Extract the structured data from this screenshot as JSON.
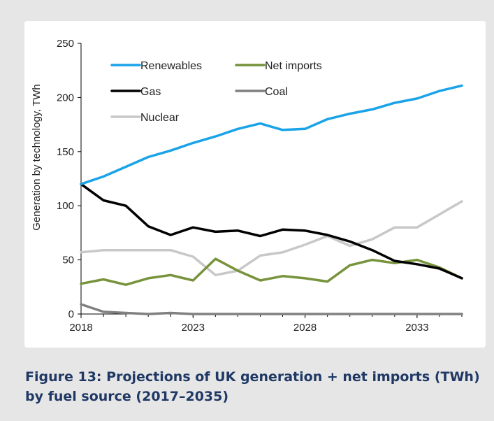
{
  "figure": {
    "caption": "Figure 13: Projections of UK generation + net imports (TWh) by fuel source (2017–2035)"
  },
  "chart_data": {
    "type": "line",
    "title": "",
    "xlabel": "",
    "ylabel": "Generation by technology,  TWh",
    "xlim": [
      2018,
      2035
    ],
    "ylim": [
      0,
      250
    ],
    "x_ticks": [
      2018,
      2023,
      2028,
      2033
    ],
    "y_ticks": [
      0,
      50,
      100,
      150,
      200,
      250
    ],
    "grid": false,
    "legend_position": "top-left",
    "x": [
      2018,
      2019,
      2020,
      2021,
      2022,
      2023,
      2024,
      2025,
      2026,
      2027,
      2028,
      2029,
      2030,
      2031,
      2032,
      2033,
      2034,
      2035
    ],
    "series": [
      {
        "name": "Renewables",
        "color": "#1aa3e8",
        "values": [
          120,
          127,
          136,
          145,
          151,
          158,
          164,
          171,
          176,
          170,
          171,
          180,
          185,
          189,
          195,
          199,
          206,
          211
        ]
      },
      {
        "name": "Net imports",
        "color": "#77933c",
        "values": [
          28,
          32,
          27,
          33,
          36,
          31,
          51,
          40,
          31,
          35,
          33,
          30,
          45,
          50,
          47,
          50,
          43,
          33
        ]
      },
      {
        "name": "Gas",
        "color": "#000000",
        "values": [
          120,
          105,
          100,
          81,
          73,
          80,
          76,
          77,
          72,
          78,
          77,
          73,
          67,
          59,
          49,
          46,
          42,
          33
        ]
      },
      {
        "name": "Coal",
        "color": "#808080",
        "values": [
          9,
          2,
          1,
          0,
          1,
          0,
          0,
          0,
          0,
          0,
          0,
          0,
          0,
          0,
          0,
          0,
          0,
          0
        ]
      },
      {
        "name": "Nuclear",
        "color": "#c8c8c8",
        "values": [
          57,
          59,
          59,
          59,
          59,
          53,
          36,
          40,
          54,
          57,
          64,
          72,
          63,
          69,
          80,
          80,
          92,
          104
        ]
      }
    ]
  }
}
